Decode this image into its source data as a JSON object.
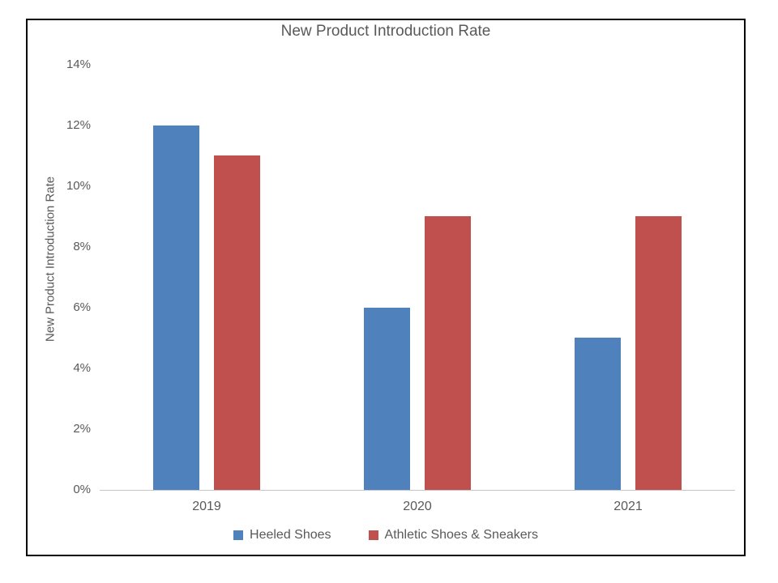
{
  "colors": {
    "background": "#FFFFFF",
    "frame_border": "#000000",
    "axis_line": "#C6C6C6",
    "text": "#595959",
    "series_blue": "#4F81BD",
    "series_red": "#C0504D"
  },
  "chart_data": {
    "type": "bar",
    "title": "New Product Introduction Rate",
    "xlabel": "",
    "ylabel": "New Product Introduction Rate",
    "categories": [
      "2019",
      "2020",
      "2021"
    ],
    "series": [
      {
        "name": "Heeled Shoes",
        "color": "#4F81BD",
        "values": [
          12,
          6,
          5
        ]
      },
      {
        "name": "Athletic Shoes & Sneakers",
        "color": "#C0504D",
        "values": [
          11,
          9,
          9
        ]
      }
    ],
    "unit": "%",
    "ylim": [
      0,
      14
    ],
    "y_tick_interval": 2,
    "y_ticks": [
      "0%",
      "2%",
      "4%",
      "6%",
      "8%",
      "10%",
      "12%",
      "14%"
    ],
    "grid": false,
    "legend_position": "bottom"
  }
}
